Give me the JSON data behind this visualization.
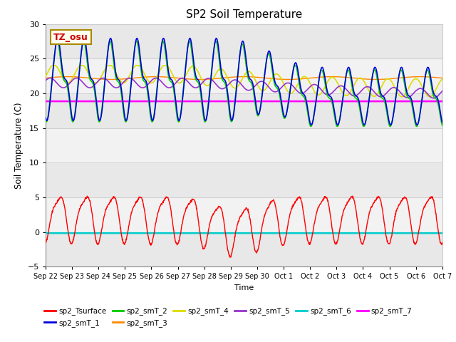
{
  "title": "SP2 Soil Temperature",
  "ylabel": "Soil Temperature (C)",
  "xlabel": "Time",
  "tz_label": "TZ_osu",
  "ylim": [
    -5,
    30
  ],
  "yticks": [
    -5,
    0,
    5,
    10,
    15,
    20,
    25,
    30
  ],
  "xtick_labels": [
    "Sep 22",
    "Sep 23",
    "Sep 24",
    "Sep 25",
    "Sep 26",
    "Sep 27",
    "Sep 28",
    "Sep 29",
    "Sep 30",
    "Oct 1",
    "Oct 2",
    "Oct 3",
    "Oct 4",
    "Oct 5",
    "Oct 6",
    "Oct 7"
  ],
  "n_days": 15,
  "colors": {
    "sp2_Tsurface": "#ff0000",
    "sp2_smT_1": "#0000dd",
    "sp2_smT_2": "#00cc00",
    "sp2_smT_3": "#ff8800",
    "sp2_smT_4": "#dddd00",
    "sp2_smT_5": "#9933cc",
    "sp2_smT_6": "#00cccc",
    "sp2_smT_7": "#ff00ff"
  },
  "background_color": "#ffffff",
  "band_light": "#f0f0f0",
  "band_dark": "#e0e0e0"
}
